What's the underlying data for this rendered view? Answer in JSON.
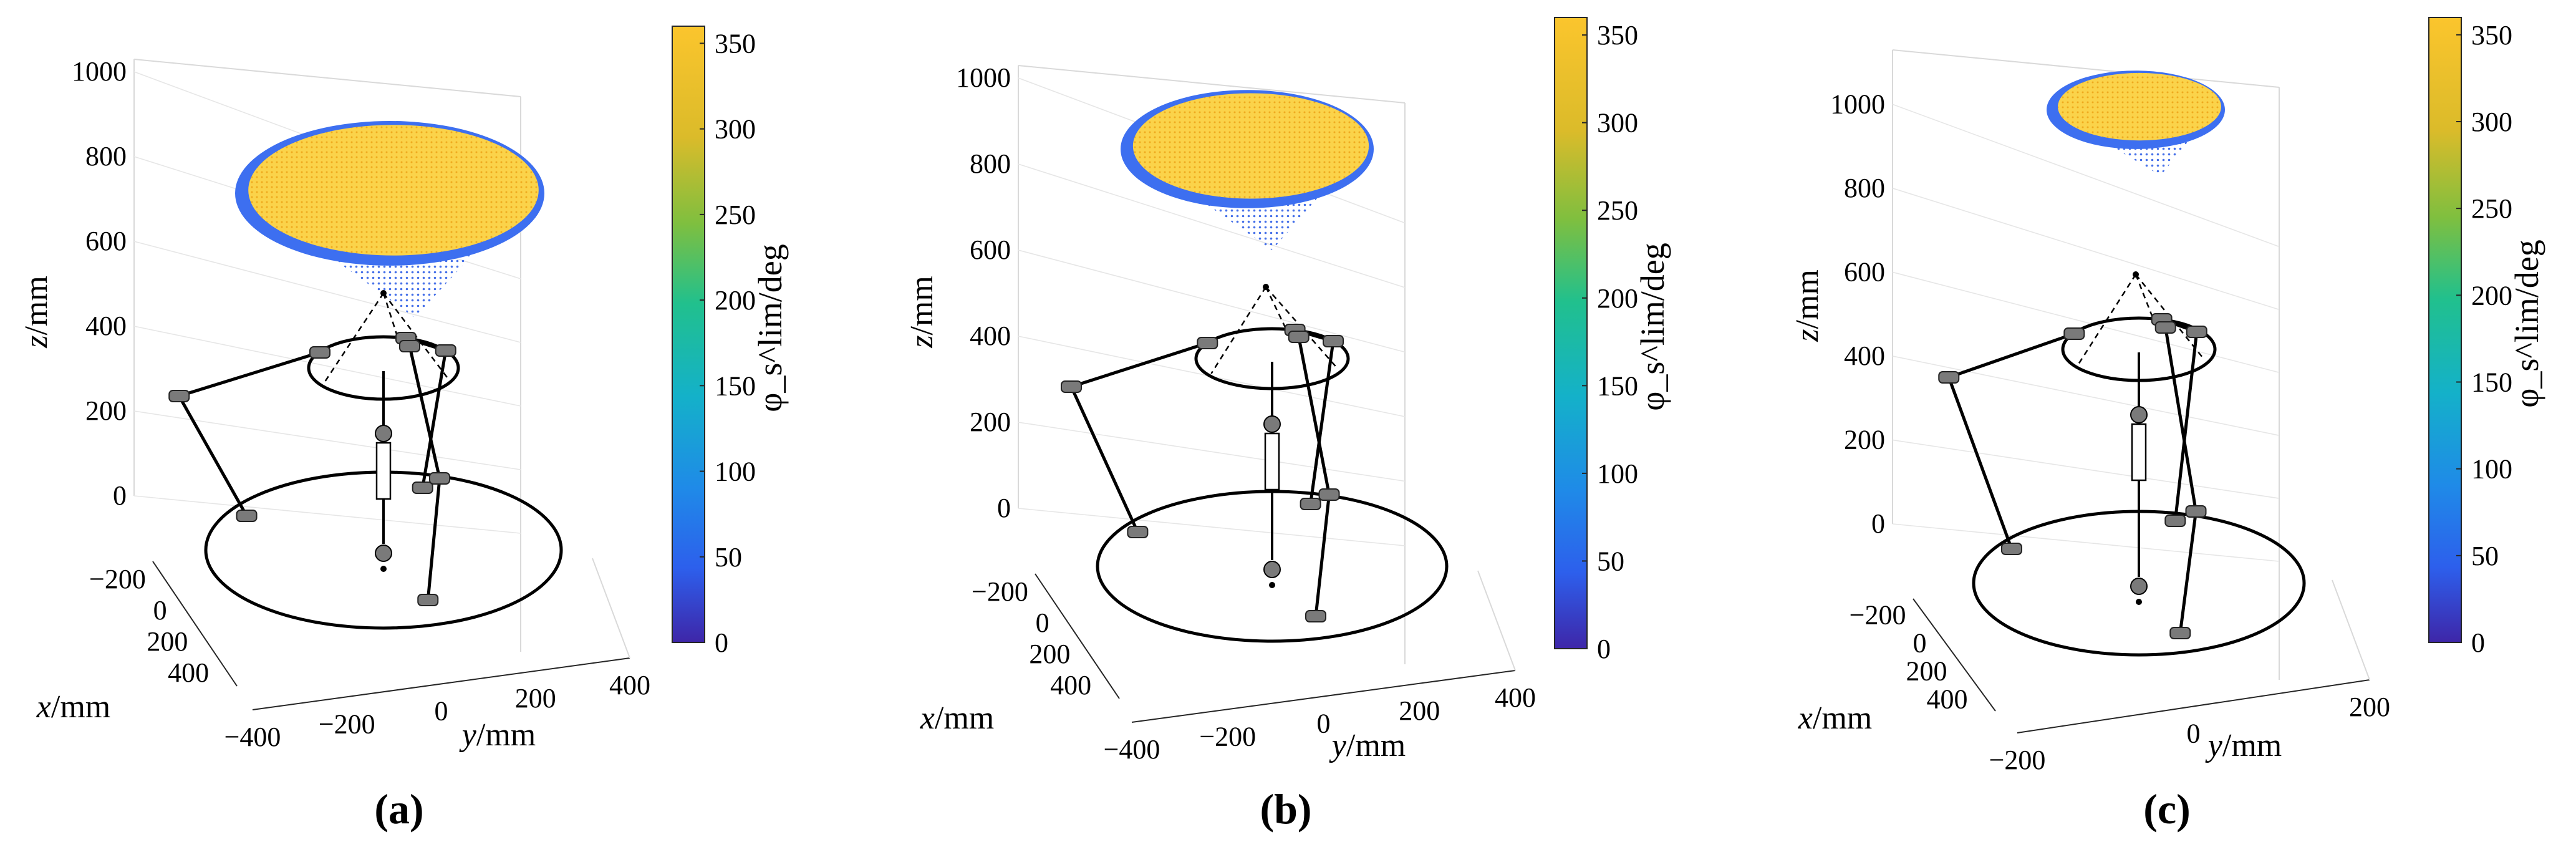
{
  "figure": {
    "panel_labels": [
      "(a)",
      "(b)",
      "(c)"
    ]
  },
  "chart_data": [
    {
      "type": "scatter",
      "subtype": "3d-workspace-surface",
      "panel": "(a)",
      "xlabel": "x/mm",
      "ylabel": "y/mm",
      "zlabel": "z/mm",
      "x_ticks": [
        -200,
        0,
        200,
        400
      ],
      "y_ticks": [
        -400,
        -200,
        0,
        200,
        400
      ],
      "z_ticks": [
        0,
        200,
        400,
        600,
        800,
        1000
      ],
      "xlim": [
        -400,
        400
      ],
      "ylim": [
        -400,
        400
      ],
      "zlim": [
        0,
        1000
      ],
      "surface": {
        "z_min": 420,
        "z_max": 860,
        "phi_center": 355,
        "phi_edge": 40
      },
      "colorbar": {
        "label_text": "φ_s^lim/deg",
        "ticks": [
          0,
          50,
          100,
          150,
          200,
          250,
          300,
          350
        ],
        "range": [
          0,
          360
        ]
      }
    },
    {
      "type": "scatter",
      "subtype": "3d-workspace-surface",
      "panel": "(b)",
      "xlabel": "x/mm",
      "ylabel": "y/mm",
      "zlabel": "z/mm",
      "x_ticks": [
        -200,
        0,
        200,
        400
      ],
      "y_ticks": [
        -400,
        -200,
        0,
        200,
        400
      ],
      "z_ticks": [
        0,
        200,
        400,
        600,
        800,
        1000
      ],
      "xlim": [
        -400,
        400
      ],
      "ylim": [
        -400,
        400
      ],
      "zlim": [
        0,
        1000
      ],
      "surface": {
        "z_min": 600,
        "z_max": 950,
        "phi_center": 355,
        "phi_edge": 40
      },
      "colorbar": {
        "label_text": "φ_s^lim/deg",
        "ticks": [
          0,
          50,
          100,
          150,
          200,
          250,
          300,
          350
        ],
        "range": [
          0,
          360
        ]
      }
    },
    {
      "type": "scatter",
      "subtype": "3d-workspace-surface",
      "panel": "(c)",
      "xlabel": "x/mm",
      "ylabel": "y/mm",
      "zlabel": "z/mm",
      "x_ticks": [
        -200,
        0,
        200,
        400
      ],
      "y_ticks": [
        -200,
        0,
        200
      ],
      "z_ticks": [
        0,
        200,
        400,
        600,
        800,
        1000
      ],
      "xlim": [
        -400,
        400
      ],
      "ylim": [
        -300,
        300
      ],
      "zlim": [
        0,
        1100
      ],
      "surface": {
        "z_min": 830,
        "z_max": 1060,
        "phi_center": 355,
        "phi_edge": 40
      },
      "colorbar": {
        "label_text": "φ_s^lim/deg",
        "ticks": [
          0,
          50,
          100,
          150,
          200,
          250,
          300,
          350
        ],
        "range": [
          0,
          360
        ]
      }
    }
  ]
}
